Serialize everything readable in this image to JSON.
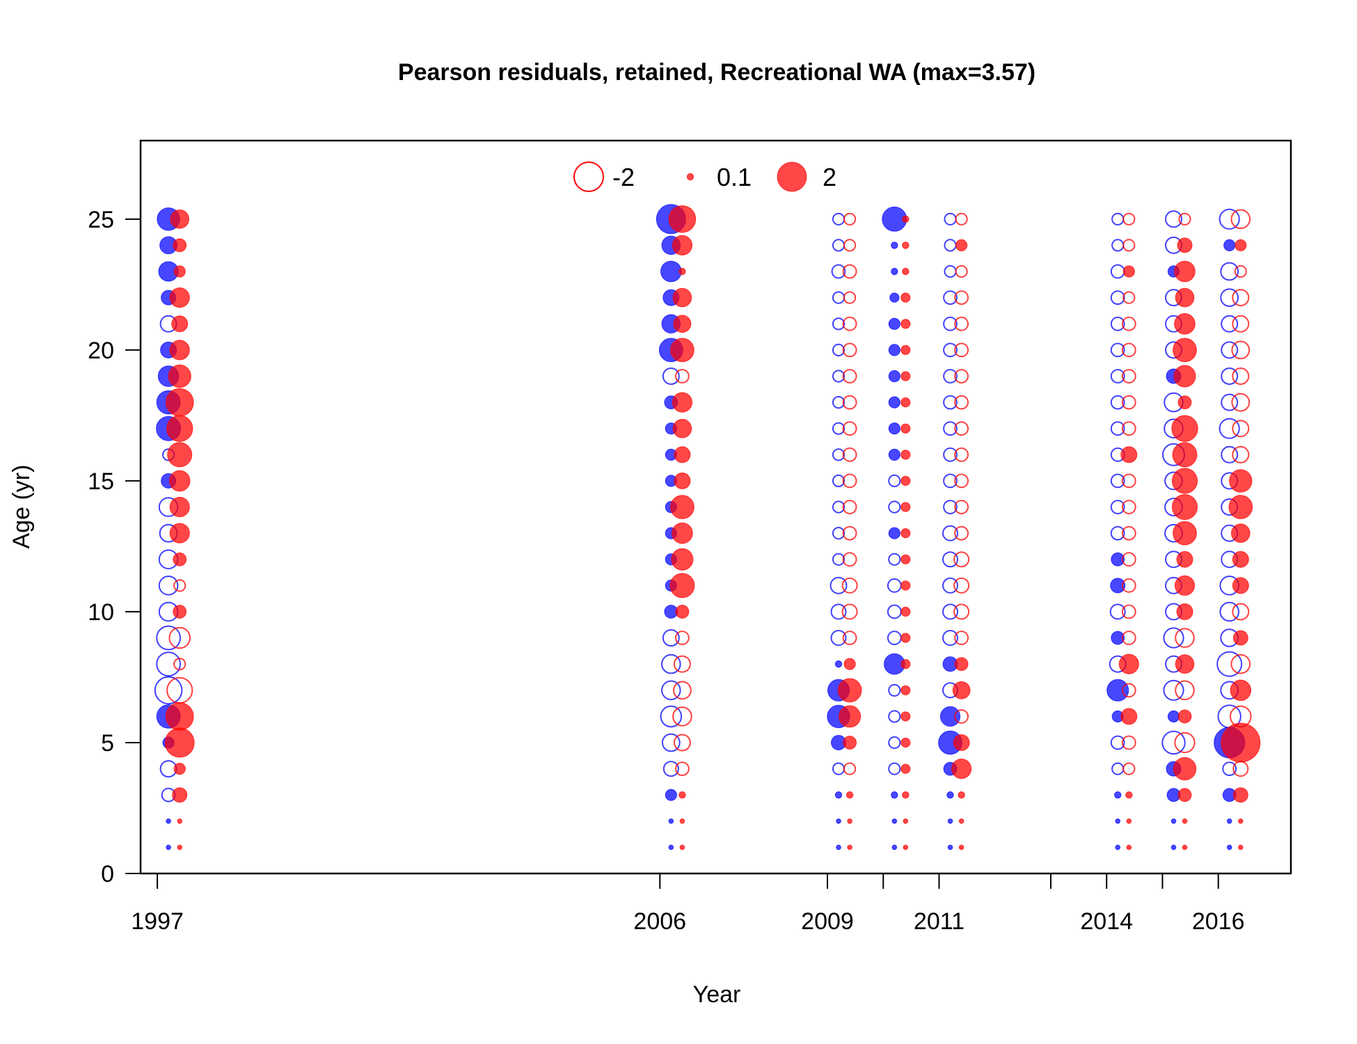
{
  "chart_data": {
    "type": "scatter",
    "subtype": "bubble",
    "title": "Pearson residuals, retained, Recreational WA (max=3.57)",
    "xlabel": "Year",
    "ylabel": "Age (yr)",
    "xlim": [
      1996.7,
      2017.3
    ],
    "ylim": [
      0,
      28
    ],
    "x_ticks": [
      1997,
      2006,
      2009,
      2010,
      2011,
      2013,
      2014,
      2015,
      2016
    ],
    "x_tick_labels": [
      "1997",
      "2006",
      "2009",
      "",
      "2011",
      "",
      "2014",
      "",
      "2016"
    ],
    "y_ticks": [
      0,
      5,
      10,
      15,
      20,
      25
    ],
    "grid": false,
    "colors": {
      "sex1": "#0000ff",
      "sex2": "#ff0000"
    },
    "legend": {
      "position": "top-center",
      "items": [
        {
          "label": "-2",
          "value": -2,
          "filled": false
        },
        {
          "label": "0.1",
          "value": 0.1,
          "filled": true
        },
        {
          "label": "2",
          "value": 2,
          "filled": true
        }
      ]
    },
    "max_abs_residual": 3.57,
    "ages": [
      25,
      24,
      23,
      22,
      21,
      20,
      19,
      18,
      17,
      16,
      15,
      14,
      13,
      12,
      11,
      10,
      9,
      8,
      7,
      6,
      5,
      4,
      3,
      2,
      1
    ],
    "series": [
      {
        "sex": "blue",
        "year": 1997,
        "values": [
          1.2,
          0.7,
          0.9,
          0.5,
          -0.6,
          0.6,
          1.0,
          1.3,
          1.4,
          -0.3,
          0.5,
          -0.8,
          -0.7,
          -0.8,
          -0.8,
          -0.8,
          -1.3,
          -1.3,
          -1.7,
          1.3,
          0.3,
          -0.6,
          -0.4,
          0.05,
          0.05
        ]
      },
      {
        "sex": "red",
        "year": 1997,
        "values": [
          0.8,
          0.4,
          0.3,
          0.9,
          0.6,
          0.9,
          1.2,
          1.8,
          1.6,
          1.4,
          1.0,
          0.9,
          0.9,
          0.4,
          -0.3,
          0.4,
          -1.0,
          -0.3,
          -1.5,
          1.8,
          2.0,
          0.3,
          0.5,
          0.05,
          0.05
        ]
      },
      {
        "sex": "blue",
        "year": 2006,
        "values": [
          2.0,
          0.8,
          1.0,
          0.6,
          0.8,
          1.3,
          -0.6,
          0.4,
          0.3,
          0.3,
          0.3,
          0.3,
          0.3,
          0.3,
          0.3,
          0.4,
          -0.6,
          -0.8,
          -0.8,
          -1.0,
          -0.7,
          -0.5,
          0.3,
          0.05,
          0.05
        ]
      },
      {
        "sex": "red",
        "year": 2006,
        "values": [
          1.7,
          0.9,
          0.1,
          0.8,
          0.7,
          1.3,
          -0.4,
          0.9,
          0.8,
          0.6,
          0.6,
          1.3,
          1.0,
          1.1,
          1.4,
          0.4,
          -0.4,
          -0.6,
          -0.7,
          -0.8,
          -0.6,
          -0.4,
          0.1,
          0.05,
          0.05
        ]
      },
      {
        "sex": "blue",
        "year": 2009,
        "values": [
          -0.3,
          -0.3,
          -0.4,
          -0.3,
          -0.3,
          -0.3,
          -0.3,
          -0.3,
          -0.3,
          -0.3,
          -0.3,
          -0.3,
          -0.3,
          -0.3,
          -0.6,
          -0.5,
          -0.5,
          0.1,
          1.1,
          1.2,
          0.5,
          -0.3,
          0.1,
          0.05,
          0.05
        ]
      },
      {
        "sex": "red",
        "year": 2009,
        "values": [
          -0.3,
          -0.3,
          -0.4,
          -0.3,
          -0.4,
          -0.4,
          -0.4,
          -0.4,
          -0.4,
          -0.4,
          -0.4,
          -0.4,
          -0.4,
          -0.4,
          -0.5,
          -0.5,
          -0.4,
          0.3,
          1.3,
          1.1,
          0.4,
          -0.3,
          0.1,
          0.05,
          0.05
        ]
      },
      {
        "sex": "blue",
        "year": 2010,
        "values": [
          1.4,
          0.1,
          0.1,
          0.2,
          0.3,
          0.3,
          0.3,
          0.3,
          0.3,
          0.3,
          -0.3,
          -0.3,
          0.3,
          -0.3,
          -0.4,
          -0.4,
          -0.4,
          1.0,
          -0.3,
          -0.3,
          -0.3,
          -0.3,
          0.1,
          0.05,
          0.05
        ]
      },
      {
        "sex": "red",
        "year": 2010,
        "values": [
          0.1,
          0.1,
          0.1,
          0.2,
          0.2,
          0.2,
          0.2,
          0.2,
          0.2,
          0.2,
          0.2,
          0.2,
          0.2,
          0.2,
          0.2,
          0.2,
          0.2,
          0.2,
          0.2,
          0.2,
          0.2,
          0.2,
          0.1,
          0.05,
          0.05
        ]
      },
      {
        "sex": "blue",
        "year": 2011,
        "values": [
          -0.3,
          -0.3,
          -0.3,
          -0.4,
          -0.4,
          -0.4,
          -0.4,
          -0.4,
          -0.4,
          -0.4,
          -0.4,
          -0.4,
          -0.5,
          -0.5,
          -0.5,
          -0.5,
          -0.5,
          0.5,
          -0.5,
          0.9,
          1.3,
          0.4,
          0.1,
          0.05,
          0.05
        ]
      },
      {
        "sex": "red",
        "year": 2011,
        "values": [
          -0.3,
          0.3,
          -0.3,
          -0.4,
          -0.4,
          -0.4,
          -0.4,
          -0.4,
          -0.4,
          -0.4,
          -0.4,
          -0.4,
          -0.4,
          -0.5,
          -0.5,
          -0.5,
          -0.4,
          0.4,
          0.7,
          -0.4,
          0.6,
          0.9,
          0.1,
          0.05,
          0.05
        ]
      },
      {
        "sex": "blue",
        "year": 2014,
        "values": [
          -0.3,
          -0.3,
          -0.4,
          -0.4,
          -0.4,
          -0.4,
          -0.4,
          -0.4,
          -0.4,
          -0.4,
          -0.4,
          -0.4,
          -0.4,
          0.4,
          0.5,
          -0.5,
          0.4,
          -0.6,
          1.1,
          0.3,
          -0.4,
          -0.3,
          0.1,
          0.05,
          0.05
        ]
      },
      {
        "sex": "red",
        "year": 2014,
        "values": [
          -0.3,
          -0.3,
          0.3,
          -0.3,
          -0.4,
          -0.4,
          -0.4,
          -0.4,
          -0.4,
          0.6,
          -0.4,
          -0.4,
          -0.4,
          -0.4,
          -0.4,
          -0.4,
          -0.4,
          0.9,
          -0.4,
          0.6,
          -0.4,
          -0.3,
          0.1,
          0.05,
          0.05
        ]
      },
      {
        "sex": "blue",
        "year": 2015,
        "values": [
          -0.6,
          -0.6,
          0.3,
          -0.6,
          -0.6,
          -0.6,
          0.5,
          -0.8,
          -0.8,
          -1.1,
          -0.7,
          -0.7,
          -0.7,
          -0.6,
          -0.6,
          -0.6,
          -0.9,
          -0.6,
          -0.9,
          0.3,
          -1.2,
          0.5,
          0.4,
          0.05,
          0.05
        ]
      },
      {
        "sex": "red",
        "year": 2015,
        "values": [
          -0.3,
          0.5,
          1.0,
          0.8,
          1.0,
          1.3,
          1.1,
          0.4,
          1.6,
          1.4,
          1.5,
          1.5,
          1.3,
          0.6,
          0.9,
          0.6,
          -0.8,
          0.8,
          -0.8,
          0.4,
          -0.9,
          1.2,
          0.4,
          0.05,
          0.05
        ]
      },
      {
        "sex": "blue",
        "year": 2016,
        "values": [
          -0.9,
          0.3,
          -0.7,
          -0.7,
          -0.6,
          -0.6,
          -0.6,
          -0.6,
          -0.9,
          -0.6,
          -0.6,
          -0.6,
          -0.6,
          -0.6,
          -0.8,
          -0.8,
          -0.7,
          -1.4,
          -0.7,
          -1.2,
          2.2,
          -0.4,
          0.4,
          0.05,
          0.05
        ]
      },
      {
        "sex": "red",
        "year": 2016,
        "values": [
          -0.8,
          0.3,
          -0.3,
          -0.6,
          -0.6,
          -0.7,
          -0.6,
          -0.7,
          -0.6,
          -0.6,
          1.2,
          1.3,
          0.8,
          0.6,
          0.6,
          -0.6,
          0.5,
          -0.8,
          1.0,
          -1.0,
          3.57,
          -0.5,
          0.5,
          0.05,
          0.05
        ]
      }
    ]
  }
}
